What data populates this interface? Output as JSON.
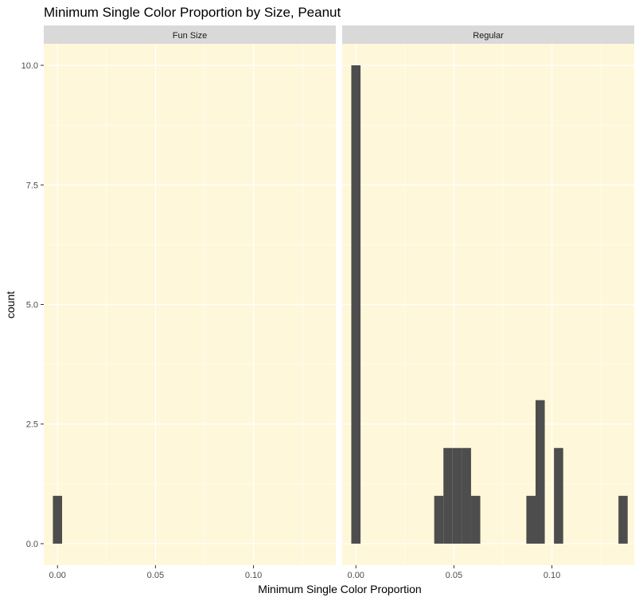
{
  "chart_data": {
    "type": "bar",
    "title": "Minimum Single Color Proportion by Size, Peanut",
    "xlabel": "Minimum Single Color Proportion",
    "ylabel": "count",
    "xlim": [
      -0.007,
      0.142
    ],
    "ylim": [
      -0.45,
      10.45
    ],
    "bin_width": 0.0047,
    "x_ticks": [
      0.0,
      0.05,
      0.1
    ],
    "x_tick_labels": [
      "0.00",
      "0.05",
      "0.10"
    ],
    "y_ticks": [
      0,
      2.5,
      5,
      7.5,
      10
    ],
    "y_tick_labels": [
      "0.0",
      "2.5",
      "5.0",
      "7.5",
      "10.0"
    ],
    "grid": true,
    "colors": {
      "panel_background": "#fff7d9",
      "strip_background": "#d9d9d9",
      "bar_fill": "#4d4d4d",
      "grid": "#ffffff"
    },
    "panels": [
      {
        "label": "Fun Size",
        "bins": [
          {
            "x": 0.0,
            "count": 1
          }
        ]
      },
      {
        "label": "Regular",
        "bins": [
          {
            "x": 0.0,
            "count": 10
          },
          {
            "x": 0.0423,
            "count": 1
          },
          {
            "x": 0.047,
            "count": 2
          },
          {
            "x": 0.0517,
            "count": 2
          },
          {
            "x": 0.0564,
            "count": 2
          },
          {
            "x": 0.0611,
            "count": 1
          },
          {
            "x": 0.0893,
            "count": 1
          },
          {
            "x": 0.094,
            "count": 3
          },
          {
            "x": 0.1034,
            "count": 2
          },
          {
            "x": 0.1363,
            "count": 1
          }
        ]
      }
    ]
  }
}
